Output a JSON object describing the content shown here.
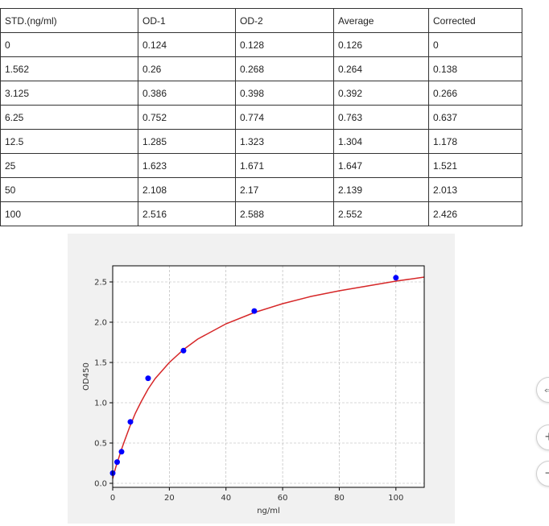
{
  "table": {
    "headers": [
      "STD.(ng/ml)",
      "OD-1",
      "OD-2",
      "Average",
      "Corrected"
    ],
    "rows": [
      [
        "0",
        "0.124",
        "0.128",
        "0.126",
        "0"
      ],
      [
        "1.562",
        "0.26",
        "0.268",
        "0.264",
        "0.138"
      ],
      [
        "3.125",
        "0.386",
        "0.398",
        "0.392",
        "0.266"
      ],
      [
        "6.25",
        "0.752",
        "0.774",
        "0.763",
        "0.637"
      ],
      [
        "12.5",
        "1.285",
        "1.323",
        "1.304",
        "1.178"
      ],
      [
        "25",
        "1.623",
        "1.671",
        "1.647",
        "1.521"
      ],
      [
        "50",
        "2.108",
        "2.17",
        "2.139",
        "2.013"
      ],
      [
        "100",
        "2.516",
        "2.588",
        "2.552",
        "2.426"
      ]
    ]
  },
  "chart_data": {
    "type": "scatter",
    "title": "",
    "xlabel": "ng/ml",
    "ylabel": "OD450",
    "xlim": [
      0,
      110
    ],
    "ylim": [
      -0.05,
      2.7
    ],
    "xticks": [
      0,
      20,
      40,
      60,
      80,
      100
    ],
    "yticks": [
      0.0,
      0.5,
      1.0,
      1.5,
      2.0,
      2.5
    ],
    "ytick_labels": [
      "0.0",
      "0.5",
      "1.0",
      "1.5",
      "2.0",
      "2.5"
    ],
    "grid": true,
    "points": {
      "x": [
        0,
        1.562,
        3.125,
        6.25,
        12.5,
        25,
        50,
        100
      ],
      "y": [
        0.126,
        0.264,
        0.392,
        0.763,
        1.304,
        1.647,
        2.139,
        2.552
      ],
      "color": "#0000ff"
    },
    "fit_curve": {
      "x": [
        0,
        1,
        2,
        3,
        4,
        6,
        8,
        10,
        12.5,
        15,
        20,
        25,
        30,
        40,
        50,
        60,
        70,
        80,
        90,
        100,
        110
      ],
      "y": [
        0.06,
        0.19,
        0.3,
        0.41,
        0.51,
        0.7,
        0.87,
        1.01,
        1.17,
        1.3,
        1.5,
        1.66,
        1.79,
        1.98,
        2.12,
        2.23,
        2.32,
        2.39,
        2.45,
        2.51,
        2.56
      ],
      "color": "#d62728"
    }
  },
  "zoom_controls": {
    "buttons": [
      {
        "name": "reset-zoom",
        "icon": "reset-zoom-icon",
        "glyph": "⇔"
      },
      {
        "name": "zoom-in",
        "icon": "plus-icon",
        "glyph": "+"
      },
      {
        "name": "zoom-out",
        "icon": "minus-icon",
        "glyph": "−"
      }
    ]
  }
}
